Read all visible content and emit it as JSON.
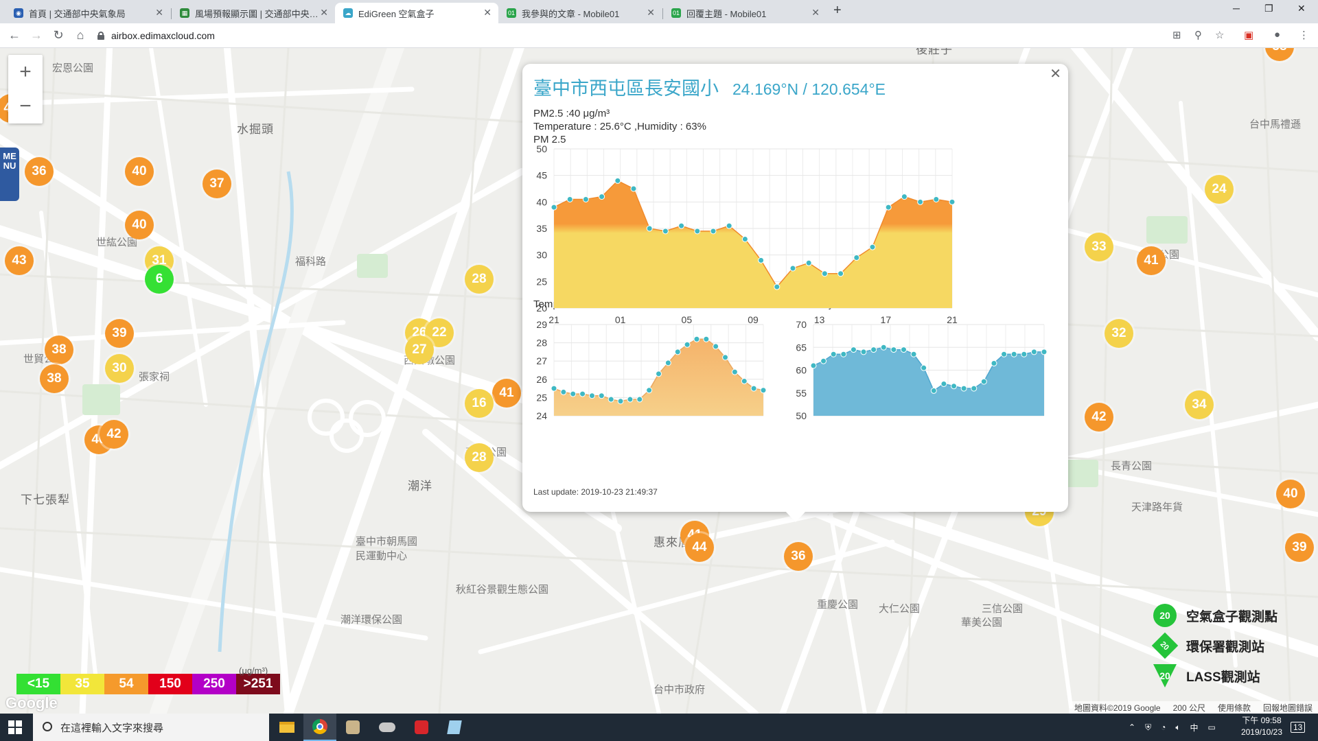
{
  "browser": {
    "tabs": [
      {
        "title": "首頁 | 交通部中央氣象局",
        "active": false
      },
      {
        "title": "風場預報顯示圖 | 交通部中央氣象局",
        "active": false
      },
      {
        "title": "EdiGreen 空氣盒子",
        "active": true
      },
      {
        "title": "我參與的文章 - Mobile01",
        "active": false
      },
      {
        "title": "回覆主題 - Mobile01",
        "active": false
      }
    ],
    "url": "airbox.edimaxcloud.com"
  },
  "map": {
    "menu_label": "MENU",
    "places": [
      "後莊子",
      "宏恩公園",
      "水掘頭",
      "世紘公園",
      "福科路",
      "世貿公園",
      "張家祠",
      "潮洋",
      "下七張犁",
      "惠來厝",
      "西大墩公園",
      "西安公園",
      "臺中市朝馬國民運動中心",
      "秋紅谷景觀生態公園",
      "潮洋環保公園",
      "大信公園",
      "長青公園",
      "天津路年貨",
      "台中馬禮遜",
      "重慶公園",
      "大仁公園",
      "三信公園",
      "華美公園",
      "台中市政府"
    ],
    "markers": [
      {
        "v": "38",
        "c": "orange"
      },
      {
        "v": "40",
        "c": "orange"
      },
      {
        "v": "36",
        "c": "orange"
      },
      {
        "v": "40",
        "c": "orange"
      },
      {
        "v": "37",
        "c": "orange"
      },
      {
        "v": "40",
        "c": "orange"
      },
      {
        "v": "43",
        "c": "orange"
      },
      {
        "v": "31",
        "c": "yellow"
      },
      {
        "v": "6",
        "c": "green"
      },
      {
        "v": "39",
        "c": "orange"
      },
      {
        "v": "38",
        "c": "orange"
      },
      {
        "v": "30",
        "c": "yellow"
      },
      {
        "v": "38",
        "c": "orange"
      },
      {
        "v": "40",
        "c": "orange"
      },
      {
        "v": "28",
        "c": "yellow"
      },
      {
        "v": "26",
        "c": "yellow"
      },
      {
        "v": "22",
        "c": "yellow"
      },
      {
        "v": "27",
        "c": "yellow"
      },
      {
        "v": "41",
        "c": "orange"
      },
      {
        "v": "16",
        "c": "yellow"
      },
      {
        "v": "28",
        "c": "yellow"
      },
      {
        "v": "40",
        "c": "orange"
      },
      {
        "v": "38",
        "c": "orange"
      },
      {
        "v": "35",
        "c": "yellow"
      },
      {
        "v": "37",
        "c": "orange"
      },
      {
        "v": "44",
        "c": "orange"
      },
      {
        "v": "42",
        "c": "orange"
      },
      {
        "v": "32",
        "c": "yellow"
      },
      {
        "v": "34",
        "c": "yellow"
      },
      {
        "v": "24",
        "c": "yellow"
      },
      {
        "v": "33",
        "c": "yellow"
      },
      {
        "v": "41",
        "c": "orange"
      },
      {
        "v": "2",
        "c": "green"
      },
      {
        "v": "29",
        "c": "yellow"
      },
      {
        "v": "41",
        "c": "orange"
      },
      {
        "v": "44",
        "c": "orange"
      },
      {
        "v": "36",
        "c": "orange"
      },
      {
        "v": "40",
        "c": "orange"
      },
      {
        "v": "39",
        "c": "orange"
      },
      {
        "v": "42",
        "c": "orange"
      }
    ],
    "scale_legend": [
      {
        "label": "<15",
        "color": "#33e033"
      },
      {
        "label": "35",
        "color": "#f2e63a"
      },
      {
        "label": "54",
        "color": "#f59a2c"
      },
      {
        "label": "150",
        "color": "#e2001a"
      },
      {
        "label": "250",
        "color": "#b300c7"
      },
      {
        "label": ">251",
        "color": "#7d0b1c"
      }
    ],
    "scale_unit": "(μg/m³)",
    "google_logo": "Google",
    "station_legend": [
      {
        "badge": "20",
        "label": "空氣盒子觀測點",
        "color": "#25c43a"
      },
      {
        "badge": "20",
        "label": "環保署觀測站",
        "color": "#25c43a"
      },
      {
        "badge": "20",
        "label": "LASS觀測站",
        "color": "#25c43a"
      }
    ],
    "footer": [
      "地圖資料©2019 Google",
      "200 公尺",
      "使用條款",
      "回報地圖錯誤"
    ],
    "selected_marker": "40"
  },
  "popup": {
    "title": "臺中市西屯區長安國小",
    "coords": "24.169°N / 120.654°E",
    "pm_line": "PM2.5 :40 μg/m³",
    "temp_line": "Temperature : 25.6°C ,Humidity : 63%",
    "chart_label": "PM 2.5",
    "temp_label": "Temperature",
    "hum_label": "Humidity",
    "last_update": "Last update: 2019-10-23 21:49:37"
  },
  "chart_data": [
    {
      "type": "area",
      "title": "PM 2.5",
      "x_ticks": [
        "21",
        "01",
        "05",
        "09",
        "13",
        "17",
        "21"
      ],
      "y_ticks": [
        20,
        25,
        30,
        35,
        40,
        45,
        50
      ],
      "ylim": [
        20,
        50
      ],
      "threshold_color_split": 35,
      "colors": {
        "above": "#f69a3a",
        "below": "#f6d862",
        "point": "#3fb8c3"
      },
      "values": [
        39,
        40.5,
        40.5,
        41,
        44,
        42.5,
        35,
        34.5,
        35.5,
        34.5,
        34.5,
        35.5,
        33,
        29,
        24,
        27.5,
        28.5,
        26.5,
        26.5,
        29.5,
        31.5,
        39,
        41,
        40,
        40.5,
        40
      ]
    },
    {
      "type": "area",
      "title": "Temperature",
      "y_ticks": [
        24,
        25,
        26,
        27,
        28,
        29
      ],
      "ylim": [
        24,
        29
      ],
      "colors": {
        "fill": "#f6d08a",
        "top": "#f5b36a",
        "point": "#3fb8c3"
      },
      "values": [
        25.5,
        25.3,
        25.2,
        25.2,
        25.1,
        25.1,
        24.9,
        24.8,
        24.9,
        24.9,
        25.4,
        26.3,
        26.9,
        27.5,
        27.9,
        28.2,
        28.2,
        27.8,
        27.2,
        26.4,
        25.9,
        25.5,
        25.4
      ]
    },
    {
      "type": "area",
      "title": "Humidity",
      "y_ticks": [
        50,
        55,
        60,
        65,
        70
      ],
      "ylim": [
        50,
        70
      ],
      "colors": {
        "fill": "#6fb9d8",
        "point": "#3fb8c3"
      },
      "values": [
        61,
        62,
        63.5,
        63.5,
        64.5,
        64,
        64.5,
        65,
        64.5,
        64.5,
        63.5,
        60.5,
        55.5,
        57,
        56.5,
        56,
        56,
        57.5,
        61.5,
        63.5,
        63.5,
        63.5,
        64,
        64
      ]
    }
  ],
  "taskbar": {
    "search_placeholder": "在這裡輸入文字來搜尋",
    "time": "下午 09:58",
    "date": "2019/10/23",
    "ime": "中",
    "notif_count": "13"
  }
}
